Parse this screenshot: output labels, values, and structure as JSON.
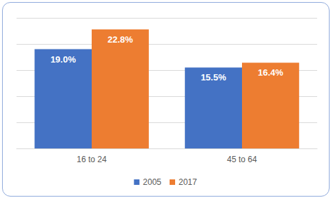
{
  "chart_data": {
    "type": "bar",
    "categories": [
      "16 to 24",
      "45 to 64"
    ],
    "series": [
      {
        "name": "2005",
        "color": "#4472c4",
        "values": [
          19.0,
          15.5
        ],
        "value_labels": [
          "19.0%",
          "15.5%"
        ]
      },
      {
        "name": "2017",
        "color": "#ed7d31",
        "values": [
          22.8,
          16.4
        ],
        "value_labels": [
          "22.8%",
          "16.4%"
        ]
      }
    ],
    "ylim": [
      0,
      25
    ],
    "yticks": [
      0,
      5,
      10,
      15,
      20,
      25
    ],
    "grid": true,
    "legend": "bottom",
    "data_labels": true,
    "tick_labels": "x"
  }
}
